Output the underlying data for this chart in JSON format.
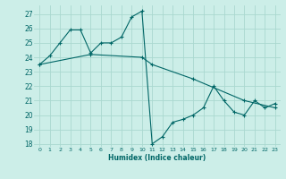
{
  "xlabel": "Humidex (Indice chaleur)",
  "bg_color": "#cceee8",
  "grid_color": "#aad8d0",
  "line_color": "#006666",
  "xlim": [
    -0.5,
    23.5
  ],
  "ylim": [
    17.8,
    27.6
  ],
  "yticks": [
    18,
    19,
    20,
    21,
    22,
    23,
    24,
    25,
    26,
    27
  ],
  "xticks": [
    0,
    1,
    2,
    3,
    4,
    5,
    6,
    7,
    8,
    9,
    10,
    11,
    12,
    13,
    14,
    15,
    16,
    17,
    18,
    19,
    20,
    21,
    22,
    23
  ],
  "series1_x": [
    0,
    1,
    2,
    3,
    4,
    5,
    6,
    7,
    8,
    9,
    10,
    11,
    12,
    13,
    14,
    15,
    16,
    17,
    18,
    19,
    20,
    21,
    22,
    23
  ],
  "series1_y": [
    23.5,
    24.1,
    25.0,
    25.9,
    25.9,
    24.3,
    25.0,
    25.0,
    25.4,
    26.8,
    27.2,
    18.0,
    18.5,
    19.5,
    19.7,
    20.0,
    20.5,
    22.0,
    21.0,
    20.2,
    20.0,
    21.0,
    20.5,
    20.8
  ],
  "series2_x": [
    0,
    5,
    10,
    11,
    15,
    20,
    23
  ],
  "series2_y": [
    23.5,
    24.2,
    24.0,
    23.5,
    22.5,
    21.0,
    20.5
  ]
}
